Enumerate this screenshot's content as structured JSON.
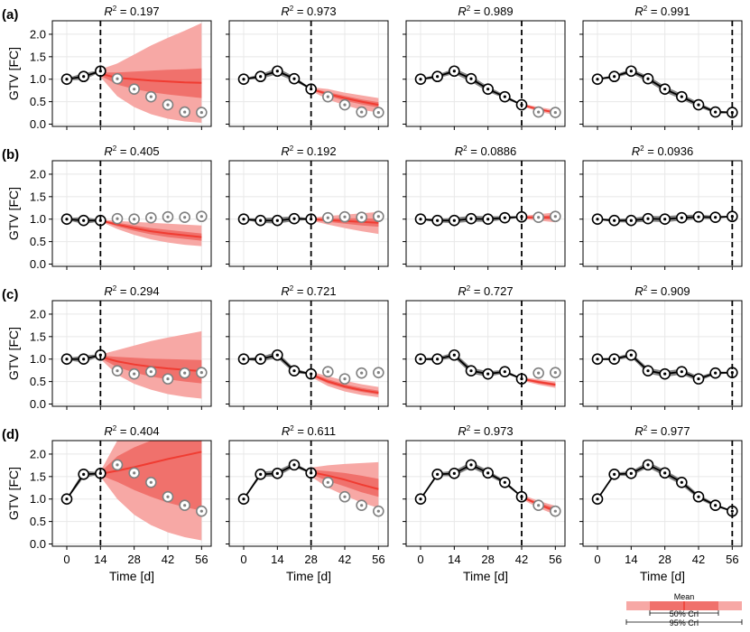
{
  "figure": {
    "xlabel": "Time [d]",
    "ylabel": "GTV [FC]",
    "r2_prefix": "R",
    "r2_sup": "2",
    "r2_eq": " = ",
    "xticks": [
      0,
      14,
      28,
      42,
      56
    ],
    "yticks": [
      0.0,
      0.5,
      1.0,
      1.5,
      2.0
    ],
    "ytick_labels": [
      "0.0",
      "0.5",
      "1.0",
      "1.5",
      "2.0"
    ],
    "xlim": [
      -6,
      60
    ],
    "ylim": [
      -0.05,
      2.3
    ],
    "grid": true,
    "colors": {
      "observed_line": "#000000",
      "fit_band": "#707070",
      "prediction_mean": "#f03c32",
      "band_95": "#f7a8a5",
      "band_50": "#f0716c",
      "future_marker": "#808080",
      "cutoff_line": "#000000"
    }
  },
  "legend": {
    "mean_label": "Mean",
    "crl50_label": "50% CrI",
    "crl95_label": "95% CrI"
  },
  "chart_data": [
    {
      "type": "line",
      "row_label": "(a)",
      "data": {
        "times": [
          0,
          7,
          14,
          21,
          28,
          35,
          42,
          49,
          56
        ],
        "gtv": [
          1.0,
          1.06,
          1.18,
          1.01,
          0.78,
          0.61,
          0.43,
          0.27,
          0.26
        ]
      },
      "panels": [
        {
          "cutoff": 14,
          "r2": "0.197",
          "pred_x": [
            14,
            21,
            28,
            35,
            42,
            49,
            56
          ],
          "mean": [
            1.12,
            1.03,
            1.0,
            0.97,
            0.95,
            0.93,
            0.92
          ],
          "ci95_low": [
            1.05,
            0.62,
            0.38,
            0.22,
            0.12,
            0.06,
            0.03
          ],
          "ci95_high": [
            1.22,
            1.35,
            1.55,
            1.75,
            1.92,
            2.08,
            2.25
          ],
          "ci50_low": [
            1.08,
            0.88,
            0.78,
            0.71,
            0.66,
            0.62,
            0.58
          ],
          "ci50_high": [
            1.15,
            1.15,
            1.17,
            1.19,
            1.21,
            1.22,
            1.24
          ]
        },
        {
          "cutoff": 28,
          "r2": "0.973",
          "pred_x": [
            28,
            35,
            42,
            49,
            56
          ],
          "mean": [
            0.78,
            0.67,
            0.58,
            0.5,
            0.43
          ],
          "ci95_low": [
            0.74,
            0.55,
            0.42,
            0.32,
            0.26
          ],
          "ci95_high": [
            0.82,
            0.78,
            0.7,
            0.64,
            0.58
          ],
          "ci50_low": [
            0.76,
            0.63,
            0.52,
            0.44,
            0.37
          ],
          "ci50_high": [
            0.8,
            0.71,
            0.63,
            0.55,
            0.49
          ]
        },
        {
          "cutoff": 42,
          "r2": "0.989",
          "pred_x": [
            42,
            49,
            56
          ],
          "mean": [
            0.43,
            0.33,
            0.26
          ],
          "ci95_low": [
            0.4,
            0.28,
            0.2
          ],
          "ci95_high": [
            0.46,
            0.38,
            0.32
          ],
          "ci50_low": [
            0.42,
            0.31,
            0.24
          ],
          "ci50_high": [
            0.44,
            0.35,
            0.28
          ]
        },
        {
          "cutoff": 56,
          "r2": "0.991",
          "pred_x": [],
          "mean": [],
          "ci95_low": [],
          "ci95_high": [],
          "ci50_low": [],
          "ci50_high": []
        }
      ]
    },
    {
      "type": "line",
      "row_label": "(b)",
      "data": {
        "times": [
          0,
          7,
          14,
          21,
          28,
          35,
          42,
          49,
          56
        ],
        "gtv": [
          1.0,
          0.97,
          0.97,
          1.01,
          1.0,
          1.03,
          1.05,
          1.04,
          1.06
        ]
      },
      "panels": [
        {
          "cutoff": 14,
          "r2": "0.405",
          "pred_x": [
            14,
            21,
            28,
            35,
            42,
            49,
            56
          ],
          "mean": [
            0.97,
            0.88,
            0.8,
            0.73,
            0.68,
            0.64,
            0.6
          ],
          "ci95_low": [
            0.95,
            0.78,
            0.65,
            0.55,
            0.48,
            0.43,
            0.4
          ],
          "ci95_high": [
            0.99,
            0.96,
            0.94,
            0.92,
            0.9,
            0.88,
            0.86
          ],
          "ci50_low": [
            0.96,
            0.84,
            0.74,
            0.66,
            0.6,
            0.56,
            0.52
          ],
          "ci50_high": [
            0.98,
            0.92,
            0.86,
            0.8,
            0.76,
            0.72,
            0.68
          ]
        },
        {
          "cutoff": 28,
          "r2": "0.192",
          "pred_x": [
            28,
            35,
            42,
            49,
            56
          ],
          "mean": [
            1.0,
            0.98,
            0.96,
            0.94,
            0.92
          ],
          "ci95_low": [
            0.97,
            0.88,
            0.8,
            0.73,
            0.67
          ],
          "ci95_high": [
            1.03,
            1.07,
            1.1,
            1.13,
            1.16
          ],
          "ci50_low": [
            0.98,
            0.94,
            0.9,
            0.86,
            0.83
          ],
          "ci50_high": [
            1.02,
            1.02,
            1.02,
            1.02,
            1.01
          ]
        },
        {
          "cutoff": 42,
          "r2": "0.0886",
          "pred_x": [
            42,
            49,
            56
          ],
          "mean": [
            1.04,
            1.04,
            1.04
          ],
          "ci95_low": [
            1.01,
            0.97,
            0.93
          ],
          "ci95_high": [
            1.07,
            1.11,
            1.15
          ],
          "ci50_low": [
            1.02,
            1.0,
            0.99
          ],
          "ci50_high": [
            1.06,
            1.07,
            1.09
          ]
        },
        {
          "cutoff": 56,
          "r2": "0.0936",
          "pred_x": [],
          "mean": [],
          "ci95_low": [],
          "ci95_high": [],
          "ci50_low": [],
          "ci50_high": []
        }
      ]
    },
    {
      "type": "line",
      "row_label": "(c)",
      "data": {
        "times": [
          0,
          7,
          14,
          21,
          28,
          35,
          42,
          49,
          56
        ],
        "gtv": [
          1.0,
          1.0,
          1.09,
          0.74,
          0.67,
          0.72,
          0.56,
          0.69,
          0.7
        ]
      },
      "panels": [
        {
          "cutoff": 14,
          "r2": "0.294",
          "pred_x": [
            14,
            21,
            28,
            35,
            42,
            49,
            56
          ],
          "mean": [
            1.05,
            0.95,
            0.88,
            0.83,
            0.79,
            0.76,
            0.73
          ],
          "ci95_low": [
            1.0,
            0.65,
            0.45,
            0.32,
            0.22,
            0.16,
            0.12
          ],
          "ci95_high": [
            1.1,
            1.2,
            1.3,
            1.4,
            1.48,
            1.55,
            1.62
          ],
          "ci50_low": [
            1.02,
            0.82,
            0.7,
            0.61,
            0.55,
            0.5,
            0.46
          ],
          "ci50_high": [
            1.08,
            1.05,
            1.03,
            1.01,
            1.0,
            0.99,
            0.98
          ]
        },
        {
          "cutoff": 28,
          "r2": "0.721",
          "pred_x": [
            28,
            35,
            42,
            49,
            56
          ],
          "mean": [
            0.66,
            0.5,
            0.39,
            0.31,
            0.25
          ],
          "ci95_low": [
            0.6,
            0.4,
            0.28,
            0.2,
            0.15
          ],
          "ci95_high": [
            0.72,
            0.62,
            0.52,
            0.44,
            0.38
          ],
          "ci50_low": [
            0.63,
            0.46,
            0.35,
            0.27,
            0.21
          ],
          "ci50_high": [
            0.69,
            0.55,
            0.44,
            0.36,
            0.3
          ]
        },
        {
          "cutoff": 42,
          "r2": "0.727",
          "pred_x": [
            42,
            49,
            56
          ],
          "mean": [
            0.56,
            0.49,
            0.43
          ],
          "ci95_low": [
            0.52,
            0.43,
            0.36
          ],
          "ci95_high": [
            0.6,
            0.55,
            0.5
          ],
          "ci50_low": [
            0.54,
            0.46,
            0.4
          ],
          "ci50_high": [
            0.58,
            0.52,
            0.46
          ]
        },
        {
          "cutoff": 56,
          "r2": "0.909",
          "pred_x": [],
          "mean": [],
          "ci95_low": [],
          "ci95_high": [],
          "ci50_low": [],
          "ci50_high": []
        }
      ]
    },
    {
      "type": "line",
      "row_label": "(d)",
      "data": {
        "times": [
          0,
          7,
          14,
          21,
          28,
          35,
          42,
          49,
          56
        ],
        "gtv": [
          1.0,
          1.55,
          1.57,
          1.76,
          1.58,
          1.37,
          1.05,
          0.86,
          0.73
        ]
      },
      "panels": [
        {
          "cutoff": 14,
          "r2": "0.404",
          "pred_x": [
            14,
            21,
            28,
            35,
            42,
            49,
            56
          ],
          "mean": [
            1.56,
            1.63,
            1.71,
            1.8,
            1.89,
            1.97,
            2.05
          ],
          "ci95_low": [
            1.5,
            1.0,
            0.65,
            0.42,
            0.26,
            0.15,
            0.08
          ],
          "ci95_high": [
            1.62,
            2.3,
            2.3,
            2.3,
            2.3,
            2.3,
            2.3
          ],
          "ci50_low": [
            1.53,
            1.38,
            1.2,
            1.05,
            0.92,
            0.82,
            0.74
          ],
          "ci50_high": [
            1.6,
            1.95,
            2.15,
            2.3,
            2.3,
            2.3,
            2.3
          ]
        },
        {
          "cutoff": 28,
          "r2": "0.611",
          "pred_x": [
            28,
            35,
            42,
            49,
            56
          ],
          "mean": [
            1.6,
            1.52,
            1.43,
            1.32,
            1.22
          ],
          "ci95_low": [
            1.5,
            1.25,
            1.08,
            0.92,
            0.8
          ],
          "ci95_high": [
            1.7,
            1.75,
            1.78,
            1.8,
            1.82
          ],
          "ci50_low": [
            1.55,
            1.4,
            1.28,
            1.15,
            1.05
          ],
          "ci50_high": [
            1.65,
            1.62,
            1.58,
            1.52,
            1.45
          ]
        },
        {
          "cutoff": 42,
          "r2": "0.973",
          "pred_x": [
            42,
            49,
            56
          ],
          "mean": [
            1.05,
            0.88,
            0.74
          ],
          "ci95_low": [
            1.0,
            0.8,
            0.65
          ],
          "ci95_high": [
            1.1,
            0.96,
            0.85
          ],
          "ci50_low": [
            1.03,
            0.85,
            0.7
          ],
          "ci50_high": [
            1.07,
            0.92,
            0.8
          ]
        },
        {
          "cutoff": 56,
          "r2": "0.977",
          "pred_x": [],
          "mean": [],
          "ci95_low": [],
          "ci95_high": [],
          "ci50_low": [],
          "ci50_high": []
        }
      ]
    }
  ]
}
